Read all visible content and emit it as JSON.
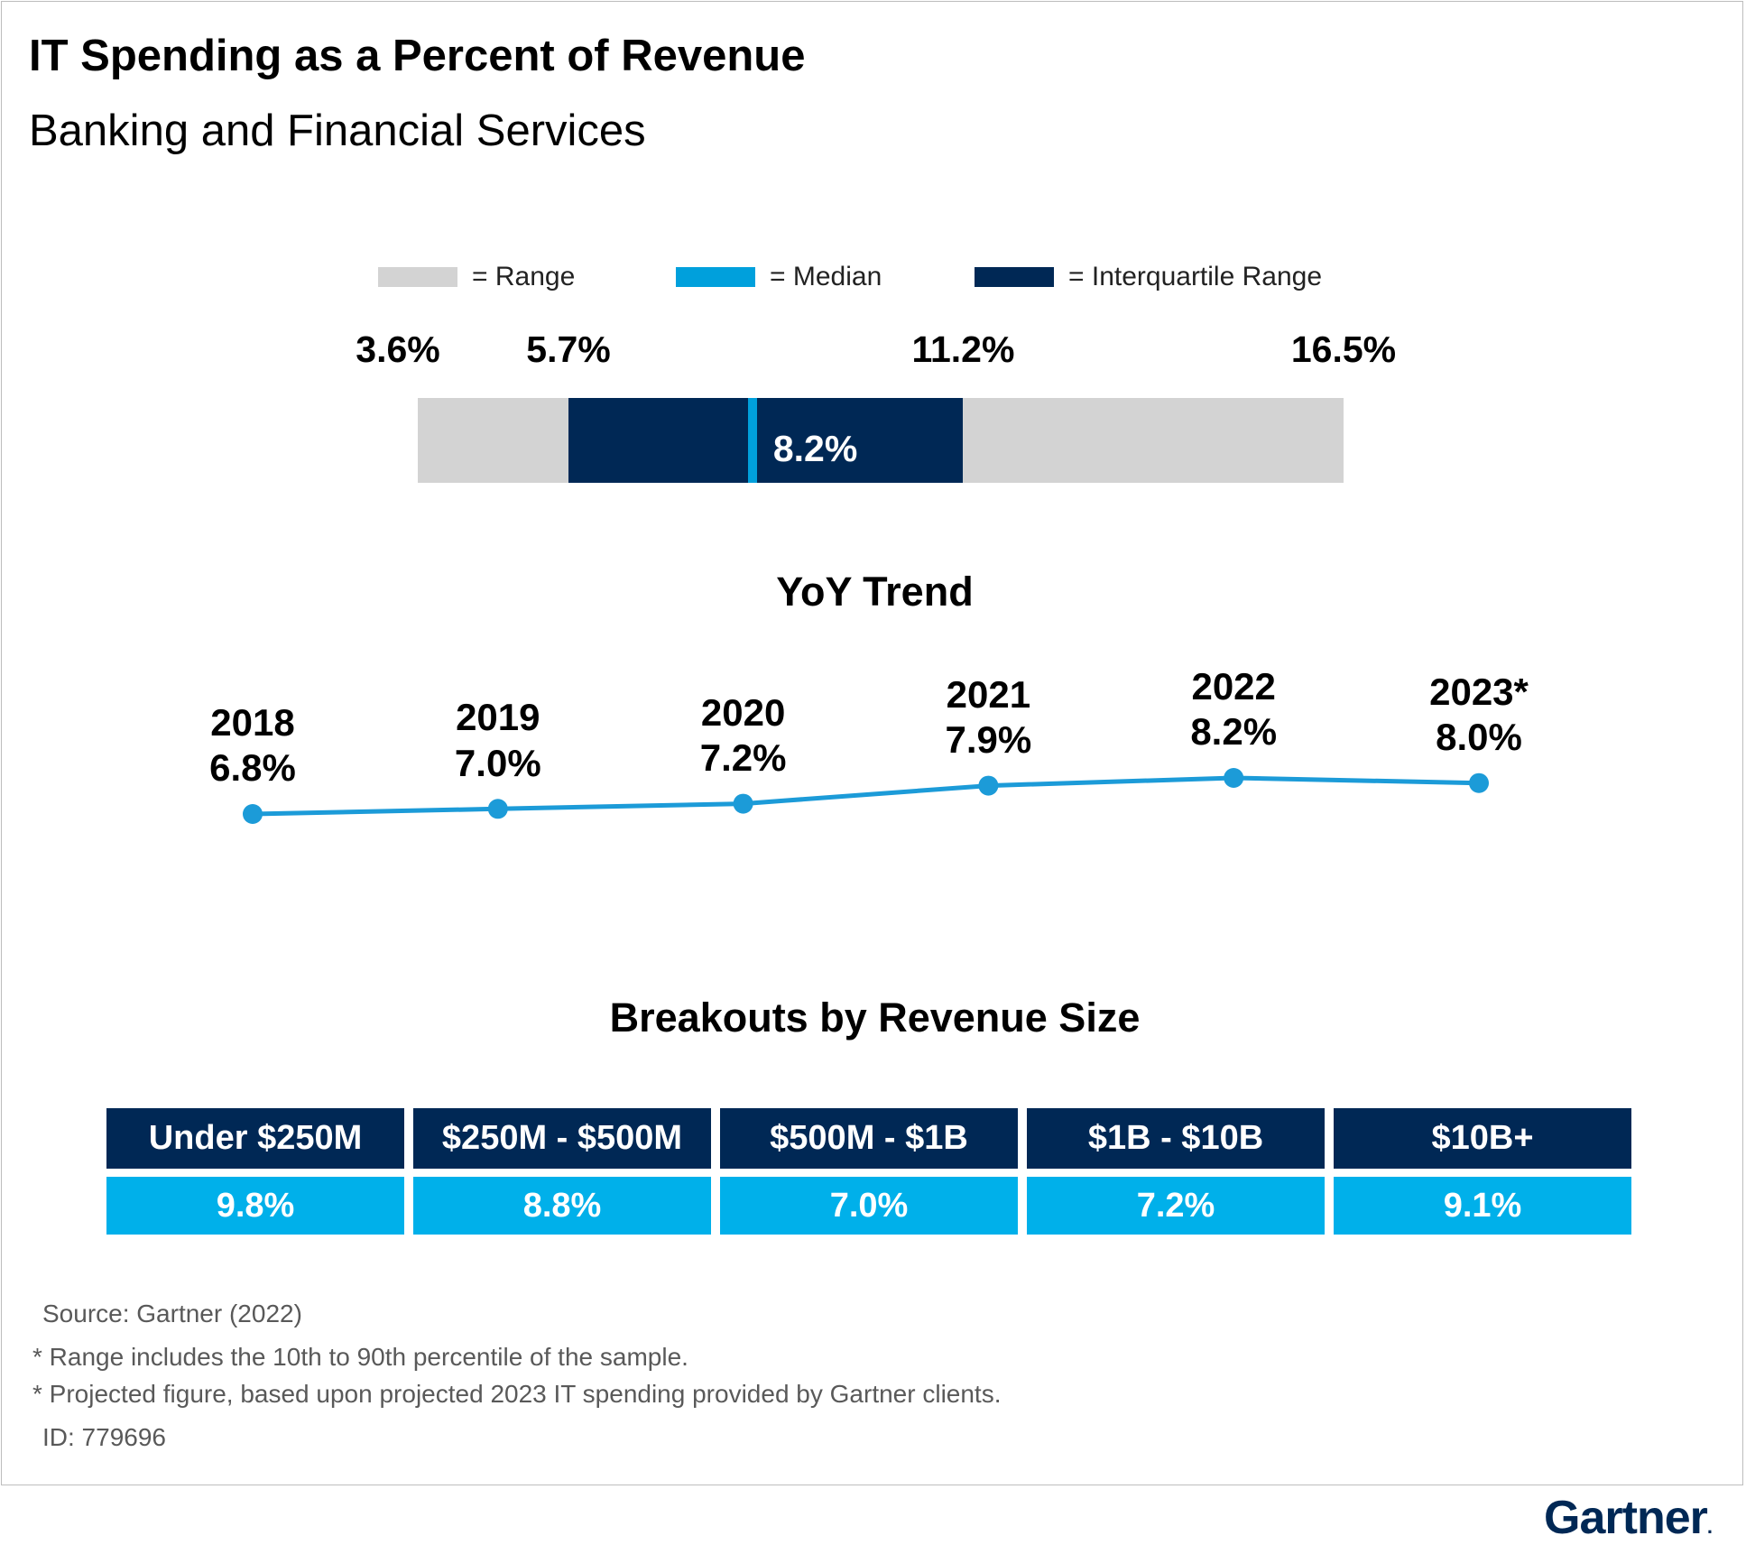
{
  "header": {
    "title": "IT Spending as a Percent of Revenue",
    "subtitle": "Banking and Financial Services"
  },
  "legend": {
    "range": "= Range",
    "median": "= Median",
    "iqr": "= Interquartile  Range"
  },
  "colors": {
    "range": "#d3d3d3",
    "median": "#00a0dc",
    "iqr": "#002855",
    "trend_line": "#1c9bd8",
    "breakout_header": "#002855",
    "breakout_value": "#00b0ea"
  },
  "chart_data": [
    {
      "type": "bar",
      "min": 3.6,
      "q1": 5.7,
      "median": 8.2,
      "q3": 11.2,
      "max": 16.5,
      "labels": {
        "min": "3.6%",
        "q1": "5.7%",
        "median": "8.2%",
        "q3": "11.2%",
        "max": "16.5%"
      }
    },
    {
      "type": "line",
      "title": "YoY Trend",
      "categories": [
        "2018",
        "2019",
        "2020",
        "2021",
        "2022",
        "2023*"
      ],
      "values": [
        6.8,
        7.0,
        7.2,
        7.9,
        8.2,
        8.0
      ],
      "value_labels": [
        "6.8%",
        "7.0%",
        "7.2%",
        "7.9%",
        "8.2%",
        "8.0%"
      ]
    },
    {
      "type": "table",
      "title": "Breakouts by Revenue Size",
      "categories": [
        "Under $250M",
        "$250M - $500M",
        "$500M - $1B",
        "$1B - $10B",
        "$10B+"
      ],
      "values": [
        9.8,
        8.8,
        7.0,
        7.2,
        9.1
      ],
      "value_labels": [
        "9.8%",
        "8.8%",
        "7.0%",
        "7.2%",
        "9.1%"
      ]
    }
  ],
  "footnotes": {
    "source": "Source: Gartner (2022)",
    "note1": "* Range includes the 10th to 90th percentile of the sample.",
    "note2": "* Projected figure, based upon projected 2023 IT spending provided by Gartner clients.",
    "id": "ID: 779696"
  },
  "brand": {
    "logo_text": "Gartner",
    "logo_mark": "."
  }
}
